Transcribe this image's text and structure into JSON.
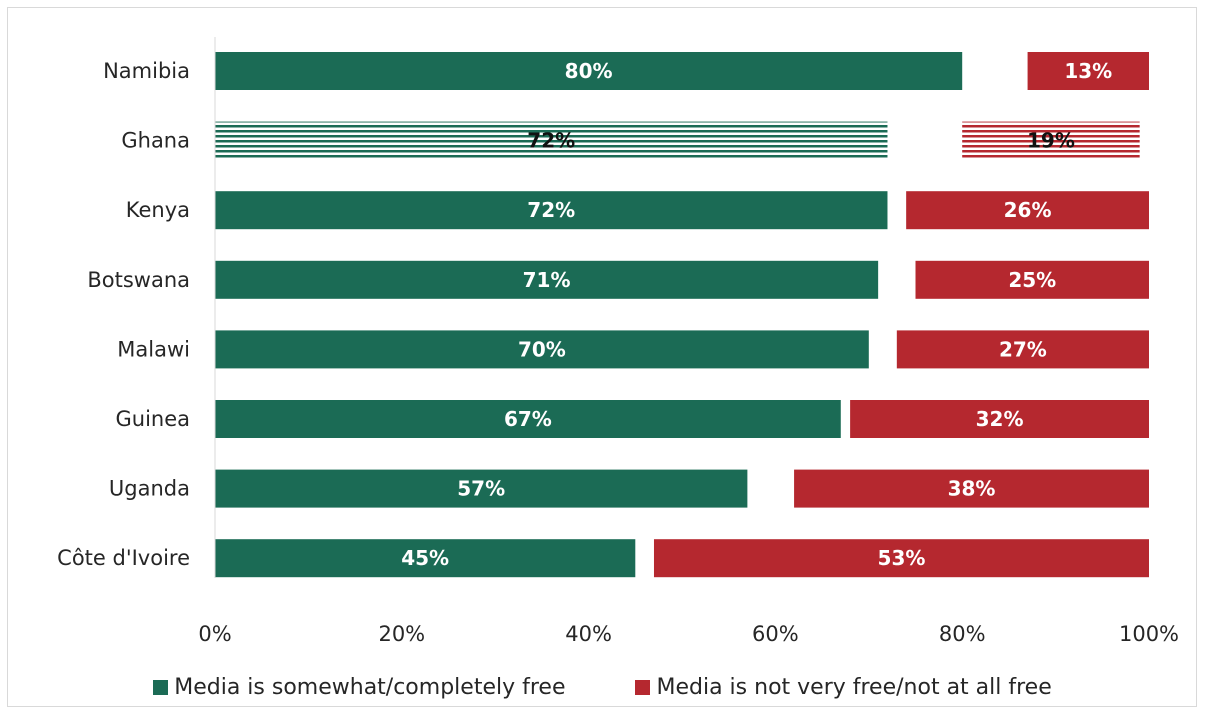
{
  "chart_data": {
    "type": "bar",
    "orientation": "horizontal",
    "stacked": true,
    "categories": [
      "Namibia",
      "Ghana",
      "Kenya",
      "Botswana",
      "Malawi",
      "Guinea",
      "Uganda",
      "Côte d'Ivoire"
    ],
    "series": [
      {
        "name": "Media is somewhat/completely free",
        "color": "#1b6b55",
        "values": [
          80,
          72,
          72,
          71,
          70,
          67,
          57,
          45
        ],
        "labels": [
          "80%",
          "72%",
          "72%",
          "71%",
          "70%",
          "67%",
          "57%",
          "45%"
        ]
      },
      {
        "name": "Media is not very free/not at all free",
        "color": "#b5282f",
        "values": [
          13,
          19,
          26,
          25,
          27,
          32,
          38,
          53
        ],
        "labels": [
          "13%",
          "19%",
          "26%",
          "25%",
          "27%",
          "32%",
          "38%",
          "53%"
        ]
      }
    ],
    "highlighted_category": "Ghana",
    "xlim": [
      0,
      100
    ],
    "x_ticks": [
      "0%",
      "20%",
      "40%",
      "60%",
      "80%",
      "100%"
    ],
    "xlabel": "",
    "ylabel": "",
    "title": "",
    "grid": false,
    "legend_position": "bottom"
  }
}
